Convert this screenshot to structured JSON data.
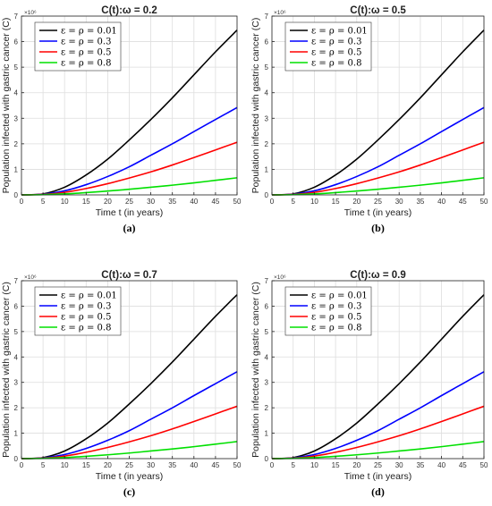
{
  "legend_labels": [
    "ε = ρ = 0.01",
    "ε = ρ = 0.3",
    "ε = ρ = 0.5",
    "ε = ρ = 0.8"
  ],
  "exponent": "×10⁶",
  "chart_data": [
    {
      "type": "line",
      "title": "C(t):ω = 0.2",
      "caption": "(a)",
      "xlabel": "Time t (in years)",
      "ylabel": "Population infected with gastric cancer (C)",
      "xlim": [
        0,
        50
      ],
      "ylim": [
        0,
        7
      ],
      "y_multiplier": "×10⁶",
      "x_ticks": [
        0,
        5,
        10,
        15,
        20,
        25,
        30,
        35,
        40,
        45,
        50
      ],
      "y_ticks": [
        0,
        1,
        2,
        3,
        4,
        5,
        6,
        7
      ],
      "grid": true,
      "legend": "top-left",
      "x": [
        0,
        5,
        10,
        15,
        20,
        25,
        30,
        35,
        40,
        45,
        50
      ],
      "series": [
        {
          "name": "ε = ρ = 0.01",
          "color": "#000000",
          "values": [
            0,
            0.04,
            0.3,
            0.78,
            1.4,
            2.15,
            2.95,
            3.8,
            4.7,
            5.6,
            6.45
          ]
        },
        {
          "name": "ε = ρ = 0.3",
          "color": "#0000ff",
          "values": [
            0,
            0.03,
            0.16,
            0.4,
            0.72,
            1.1,
            1.55,
            2.0,
            2.48,
            2.95,
            3.42
          ]
        },
        {
          "name": "ε = ρ = 0.5",
          "color": "#ff0000",
          "values": [
            0,
            0.02,
            0.1,
            0.25,
            0.44,
            0.66,
            0.9,
            1.17,
            1.46,
            1.76,
            2.06
          ]
        },
        {
          "name": "ε = ρ = 0.8",
          "color": "#00e000",
          "values": [
            0,
            0.01,
            0.04,
            0.09,
            0.15,
            0.22,
            0.3,
            0.38,
            0.47,
            0.57,
            0.67
          ]
        }
      ]
    },
    {
      "type": "line",
      "title": "C(t):ω = 0.5",
      "caption": "(b)",
      "xlabel": "Time t (in years)",
      "ylabel": "Population infected with gastric cancer (C)",
      "xlim": [
        0,
        50
      ],
      "ylim": [
        0,
        7
      ],
      "y_multiplier": "×10⁶",
      "x_ticks": [
        0,
        5,
        10,
        15,
        20,
        25,
        30,
        35,
        40,
        45,
        50
      ],
      "y_ticks": [
        0,
        1,
        2,
        3,
        4,
        5,
        6,
        7
      ],
      "grid": true,
      "legend": "top-left",
      "x": [
        0,
        5,
        10,
        15,
        20,
        25,
        30,
        35,
        40,
        45,
        50
      ],
      "series": [
        {
          "name": "ε = ρ = 0.01",
          "color": "#000000",
          "values": [
            0,
            0.04,
            0.3,
            0.78,
            1.4,
            2.15,
            2.95,
            3.8,
            4.7,
            5.6,
            6.45
          ]
        },
        {
          "name": "ε = ρ = 0.3",
          "color": "#0000ff",
          "values": [
            0,
            0.03,
            0.16,
            0.4,
            0.72,
            1.1,
            1.55,
            2.0,
            2.48,
            2.95,
            3.42
          ]
        },
        {
          "name": "ε = ρ = 0.5",
          "color": "#ff0000",
          "values": [
            0,
            0.02,
            0.1,
            0.25,
            0.44,
            0.66,
            0.9,
            1.17,
            1.46,
            1.76,
            2.06
          ]
        },
        {
          "name": "ε = ρ = 0.8",
          "color": "#00e000",
          "values": [
            0,
            0.01,
            0.04,
            0.09,
            0.15,
            0.22,
            0.3,
            0.38,
            0.47,
            0.57,
            0.67
          ]
        }
      ]
    },
    {
      "type": "line",
      "title": "C(t):ω = 0.7",
      "caption": "(c)",
      "xlabel": "Time t (in years)",
      "ylabel": "Population infected with gastric cancer (C)",
      "xlim": [
        0,
        50
      ],
      "ylim": [
        0,
        7
      ],
      "y_multiplier": "×10⁶",
      "x_ticks": [
        0,
        5,
        10,
        15,
        20,
        25,
        30,
        35,
        40,
        45,
        50
      ],
      "y_ticks": [
        0,
        1,
        2,
        3,
        4,
        5,
        6,
        7
      ],
      "grid": true,
      "legend": "top-left",
      "x": [
        0,
        5,
        10,
        15,
        20,
        25,
        30,
        35,
        40,
        45,
        50
      ],
      "series": [
        {
          "name": "ε = ρ = 0.01",
          "color": "#000000",
          "values": [
            0,
            0.04,
            0.3,
            0.78,
            1.4,
            2.15,
            2.95,
            3.8,
            4.7,
            5.6,
            6.45
          ]
        },
        {
          "name": "ε = ρ = 0.3",
          "color": "#0000ff",
          "values": [
            0,
            0.03,
            0.16,
            0.4,
            0.72,
            1.1,
            1.55,
            2.0,
            2.48,
            2.95,
            3.42
          ]
        },
        {
          "name": "ε = ρ = 0.5",
          "color": "#ff0000",
          "values": [
            0,
            0.02,
            0.1,
            0.25,
            0.44,
            0.66,
            0.9,
            1.17,
            1.46,
            1.76,
            2.06
          ]
        },
        {
          "name": "ε = ρ = 0.8",
          "color": "#00e000",
          "values": [
            0,
            0.01,
            0.04,
            0.09,
            0.15,
            0.22,
            0.3,
            0.38,
            0.47,
            0.57,
            0.67
          ]
        }
      ]
    },
    {
      "type": "line",
      "title": "C(t):ω = 0.9",
      "caption": "(d)",
      "xlabel": "Time t (in years)",
      "ylabel": "Population infected with gastric cancer (C)",
      "xlim": [
        0,
        50
      ],
      "ylim": [
        0,
        7
      ],
      "y_multiplier": "×10⁶",
      "x_ticks": [
        0,
        5,
        10,
        15,
        20,
        25,
        30,
        35,
        40,
        45,
        50
      ],
      "y_ticks": [
        0,
        1,
        2,
        3,
        4,
        5,
        6,
        7
      ],
      "grid": true,
      "legend": "top-left",
      "x": [
        0,
        5,
        10,
        15,
        20,
        25,
        30,
        35,
        40,
        45,
        50
      ],
      "series": [
        {
          "name": "ε = ρ = 0.01",
          "color": "#000000",
          "values": [
            0,
            0.04,
            0.3,
            0.78,
            1.4,
            2.15,
            2.95,
            3.8,
            4.7,
            5.6,
            6.45
          ]
        },
        {
          "name": "ε = ρ = 0.3",
          "color": "#0000ff",
          "values": [
            0,
            0.03,
            0.16,
            0.4,
            0.72,
            1.1,
            1.55,
            2.0,
            2.48,
            2.95,
            3.42
          ]
        },
        {
          "name": "ε = ρ = 0.5",
          "color": "#ff0000",
          "values": [
            0,
            0.02,
            0.1,
            0.25,
            0.44,
            0.66,
            0.9,
            1.17,
            1.46,
            1.76,
            2.06
          ]
        },
        {
          "name": "ε = ρ = 0.8",
          "color": "#00e000",
          "values": [
            0,
            0.01,
            0.04,
            0.09,
            0.15,
            0.22,
            0.3,
            0.38,
            0.47,
            0.57,
            0.67
          ]
        }
      ]
    }
  ]
}
